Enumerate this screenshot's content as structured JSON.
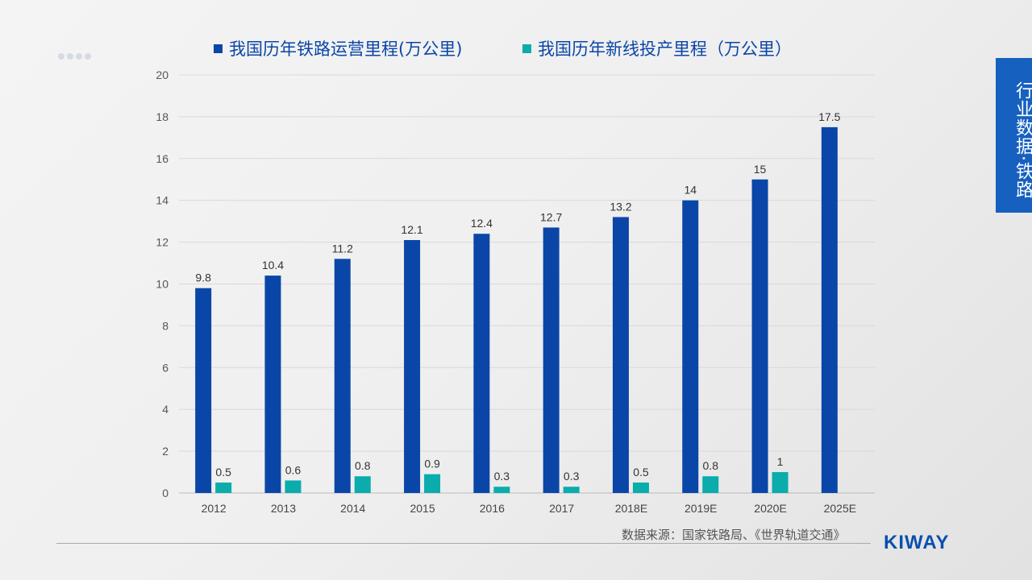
{
  "side_tab": "行业数据·铁路",
  "source": "数据来源：国家铁路局、《世界轨道交通》",
  "logo": "KIWAY",
  "chart_data": {
    "type": "bar",
    "categories": [
      "2012",
      "2013",
      "2014",
      "2015",
      "2016",
      "2017",
      "2018E",
      "2019E",
      "2020E",
      "2025E"
    ],
    "series": [
      {
        "name": "我国历年铁路运营里程(万公里)",
        "color": "#0a46a8",
        "values": [
          9.8,
          10.4,
          11.2,
          12.1,
          12.4,
          12.7,
          13.2,
          14,
          15,
          17.5
        ]
      },
      {
        "name": "我国历年新线投产里程（万公里）",
        "color": "#0aacac",
        "values": [
          0.5,
          0.6,
          0.8,
          0.9,
          0.3,
          0.3,
          0.5,
          0.8,
          1,
          null
        ]
      }
    ],
    "ylim": [
      0,
      20
    ],
    "yticks": [
      0,
      2,
      4,
      6,
      8,
      10,
      12,
      14,
      16,
      18,
      20
    ],
    "grid": true,
    "legend": "top"
  }
}
